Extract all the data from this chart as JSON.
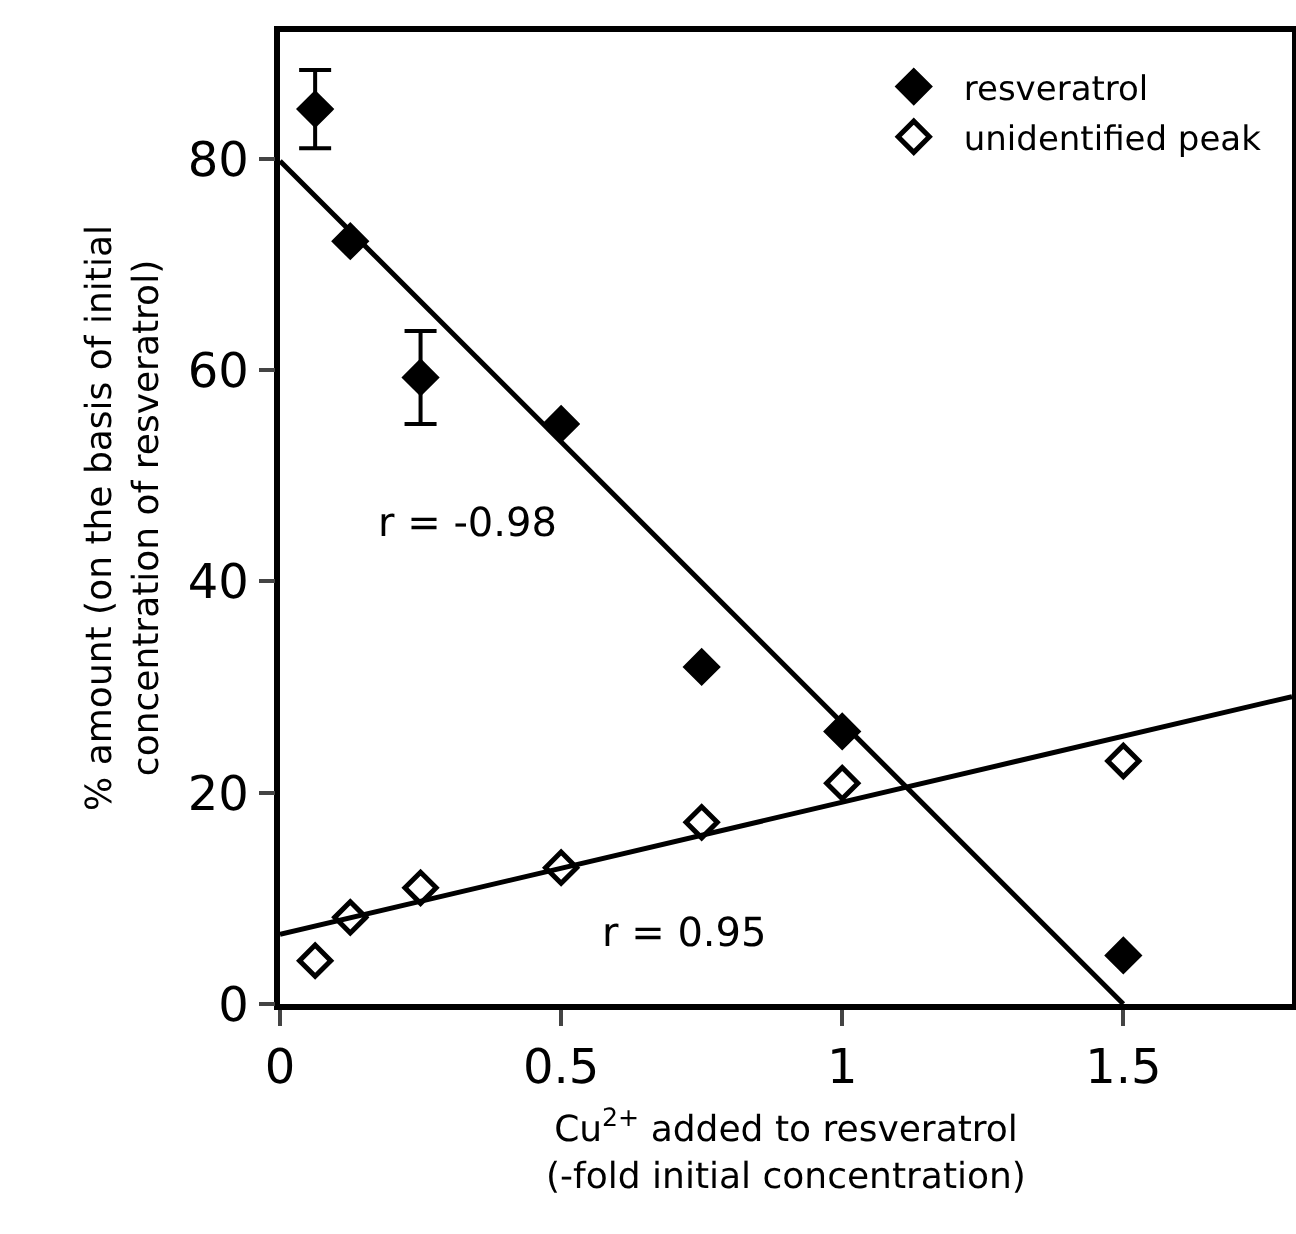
{
  "chart_data": {
    "type": "scatter",
    "xlabel": "Cu$^{2+}$ added to resveratrol\n(-fold initial concentration)",
    "ylabel": "% amount (on the basis of initial\nconcentration of resveratrol)",
    "x": [
      0.0625,
      0.125,
      0.25,
      0.5,
      0.75,
      1,
      1.5
    ],
    "series": [
      {
        "name": "resveratrol",
        "color": "#000000",
        "marker": "diamond",
        "values": [
          84.7,
          72.2,
          59.3,
          54.9,
          31.9,
          25.8,
          4.6
        ],
        "errors": [
          [
            81,
            88.4
          ],
          null,
          [
            54.9,
            63.7
          ],
          null,
          null,
          null,
          null
        ]
      },
      {
        "name": "unidentified peak",
        "color": "#000000",
        "marker": "diamond",
        "values": [
          4.1,
          8.2,
          11,
          12.9,
          17.2,
          20.9,
          23
        ]
      },
      {
        "type": "line",
        "x": [
          0,
          1.5
        ],
        "color": "#000000",
        "marker": "none",
        "values": [
          79.8,
          0
        ]
      },
      {
        "type": "line",
        "x": [
          0,
          1.8
        ],
        "color": "#000000",
        "marker": "none",
        "values": [
          6.6,
          29.1
        ]
      }
    ],
    "annotations": [
      "r = -0.98",
      "r = 0.95"
    ],
    "xlim": [
      0,
      1.8
    ],
    "xticks": [
      0,
      0.5,
      1,
      1.5
    ],
    "ylim": [
      0,
      92
    ],
    "yticks": [
      0,
      20,
      40,
      60,
      80
    ],
    "grid": false,
    "legend": "top right",
    "line_style": "solid"
  }
}
